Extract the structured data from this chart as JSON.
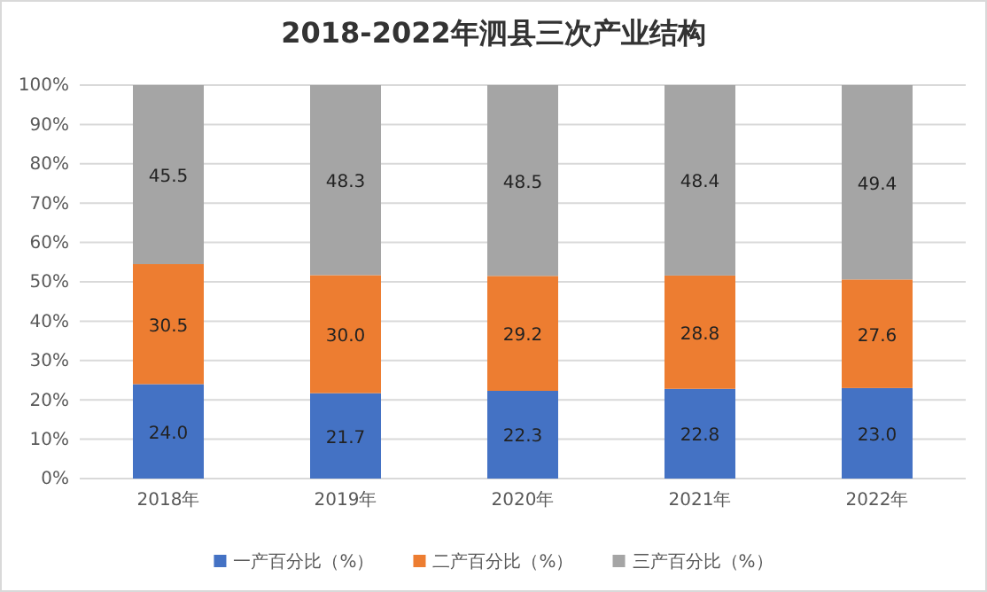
{
  "chart_data": {
    "type": "bar",
    "stacked": true,
    "title": "2018-2022年泗县三次产业结构",
    "categories": [
      "2018年",
      "2019年",
      "2020年",
      "2021年",
      "2022年"
    ],
    "series": [
      {
        "name": "一产百分比（%）",
        "color": "#4472c4",
        "values": [
          24.0,
          21.7,
          22.3,
          22.8,
          23.0
        ],
        "value_labels": [
          "24.0",
          "21.7",
          "22.3",
          "22.8",
          "23.0"
        ]
      },
      {
        "name": "二产百分比（%）",
        "color": "#ed7d31",
        "values": [
          30.5,
          30.0,
          29.2,
          28.8,
          27.6
        ],
        "value_labels": [
          "30.5",
          "30.0",
          "29.2",
          "28.8",
          "27.6"
        ]
      },
      {
        "name": "三产百分比（%）",
        "color": "#a5a5a5",
        "values": [
          45.5,
          48.3,
          48.5,
          48.4,
          49.4
        ],
        "value_labels": [
          "45.5",
          "48.3",
          "48.5",
          "48.4",
          "49.4"
        ]
      }
    ],
    "ylim": [
      0,
      100
    ],
    "yticks": [
      {
        "value": 0,
        "label": "0%"
      },
      {
        "value": 10,
        "label": "10%"
      },
      {
        "value": 20,
        "label": "20%"
      },
      {
        "value": 30,
        "label": "30%"
      },
      {
        "value": 40,
        "label": "40%"
      },
      {
        "value": 50,
        "label": "50%"
      },
      {
        "value": 60,
        "label": "60%"
      },
      {
        "value": 70,
        "label": "70%"
      },
      {
        "value": 80,
        "label": "80%"
      },
      {
        "value": 90,
        "label": "90%"
      },
      {
        "value": 100,
        "label": "100%"
      }
    ],
    "grid": "y",
    "legend": "bottom"
  }
}
